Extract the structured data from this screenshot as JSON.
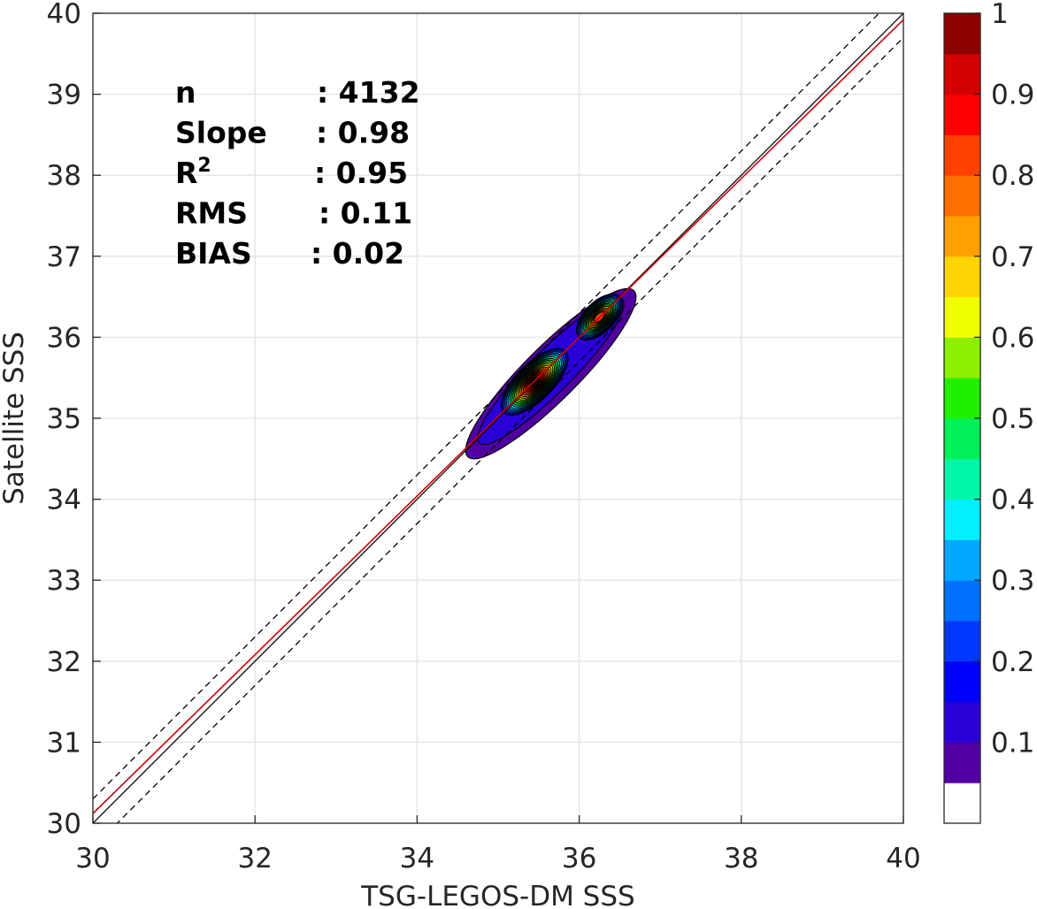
{
  "chart_data": {
    "type": "contour",
    "xlabel": "TSG-LEGOS-DM SSS",
    "ylabel": "Satellite SSS",
    "xlim": [
      30,
      40
    ],
    "ylim": [
      30,
      40
    ],
    "x_ticks": [
      "30",
      "32",
      "34",
      "36",
      "38",
      "40"
    ],
    "y_ticks": [
      "30",
      "31",
      "32",
      "33",
      "34",
      "35",
      "36",
      "37",
      "38",
      "39",
      "40"
    ],
    "grid": true,
    "stats": [
      {
        "label": "n",
        "sup": "",
        "value": ": 4132"
      },
      {
        "label": "Slope",
        "sup": "",
        "value": ": 0.98"
      },
      {
        "label": "R",
        "sup": "2",
        "value": ": 0.95"
      },
      {
        "label": "RMS",
        "sup": "",
        "value": ": 0.11"
      },
      {
        "label": "BIAS",
        "sup": "",
        "value": ": 0.02"
      }
    ],
    "lines": [
      {
        "name": "1:1",
        "color": "#000000",
        "style": "solid",
        "slope": 1.0,
        "intercept": 0.0
      },
      {
        "name": "+0.3",
        "color": "#000000",
        "style": "dashed",
        "slope": 1.0,
        "intercept": 0.3
      },
      {
        "name": "-0.3",
        "color": "#000000",
        "style": "dashed",
        "slope": 1.0,
        "intercept": -0.3
      },
      {
        "name": "fit",
        "color": "#d40000",
        "style": "solid",
        "slope": 0.98,
        "intercept": 0.72
      }
    ],
    "density_peaks": [
      {
        "x": 35.45,
        "y": 35.45,
        "value": 1.0
      },
      {
        "x": 36.25,
        "y": 36.25,
        "value": 0.8
      }
    ],
    "contour_levels": [
      0.05,
      0.1,
      0.15,
      0.2,
      0.25,
      0.3,
      0.35,
      0.4,
      0.45,
      0.5,
      0.55,
      0.6,
      0.65,
      0.7,
      0.75,
      0.8,
      0.85,
      0.9,
      0.95,
      1.0
    ],
    "colorbar": {
      "ticks": [
        "0.1",
        "0.2",
        "0.3",
        "0.4",
        "0.5",
        "0.6",
        "0.7",
        "0.8",
        "0.9",
        "1"
      ],
      "tick_values": [
        0.1,
        0.2,
        0.3,
        0.4,
        0.5,
        0.6,
        0.7,
        0.8,
        0.9,
        1.0
      ],
      "range": [
        0,
        1
      ],
      "colors": [
        "#ffffff",
        "#5000a0",
        "#2a00d8",
        "#0000ff",
        "#0038ff",
        "#0070ff",
        "#00a8ff",
        "#00f0ff",
        "#00f7a8",
        "#00f05a",
        "#20f000",
        "#8cf000",
        "#f0ff00",
        "#ffd400",
        "#ffa000",
        "#ff7000",
        "#ff4000",
        "#ff0000",
        "#d20000",
        "#8c0000"
      ]
    }
  }
}
